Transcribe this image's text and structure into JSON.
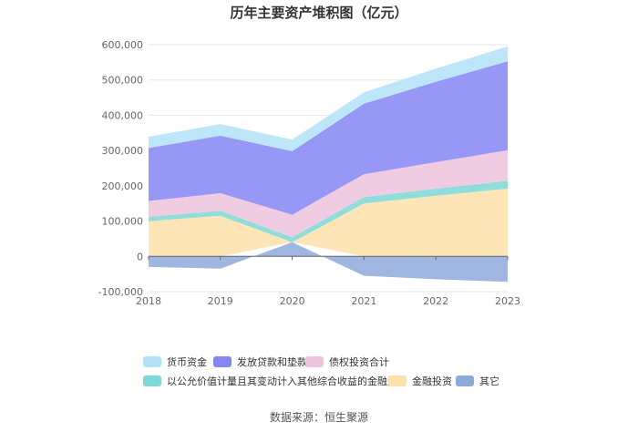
{
  "chart_data": {
    "type": "area",
    "title": "历年主要资产堆积图（亿元）",
    "categories": [
      "2018",
      "2019",
      "2020",
      "2021",
      "2022",
      "2023"
    ],
    "ylim": [
      -100000,
      600000
    ],
    "yticks": [
      -100000,
      0,
      100000,
      200000,
      300000,
      400000,
      500000,
      600000
    ],
    "ytick_labels": [
      "-100,000",
      "0",
      "100,000",
      "200,000",
      "300,000",
      "400,000",
      "500,000",
      "600,000"
    ],
    "stacked": true,
    "series": [
      {
        "name": "其它",
        "color": "#8eaadb",
        "values": [
          -30000,
          -35000,
          40000,
          -55000,
          -65000,
          -72000
        ]
      },
      {
        "name": "金融投资",
        "color": "#fde1ac",
        "values": [
          100000,
          115000,
          0,
          150000,
          172000,
          192000
        ]
      },
      {
        "name": "以公允价值计量且其变动计入其他综合收益的金融资产",
        "color": "#7dd8d6",
        "values": [
          12000,
          14000,
          14000,
          18000,
          20000,
          22000
        ]
      },
      {
        "name": "债权投资合计",
        "color": "#edc3de",
        "values": [
          45000,
          50000,
          64000,
          65000,
          75000,
          87000
        ]
      },
      {
        "name": "发放贷款和垫款",
        "color": "#8585f4",
        "values": [
          150000,
          163000,
          180000,
          200000,
          228000,
          252000
        ]
      },
      {
        "name": "货币资金",
        "color": "#b3e2f8",
        "values": [
          32000,
          33000,
          33000,
          32000,
          37000,
          42000
        ]
      }
    ],
    "legend_order": [
      "货币资金",
      "发放贷款和垫款",
      "债权投资合计",
      "以公允价值计量且其变动计入其他综合收益的金融资产",
      "金融投资",
      "其它"
    ],
    "source": "数据来源：恒生聚源"
  }
}
